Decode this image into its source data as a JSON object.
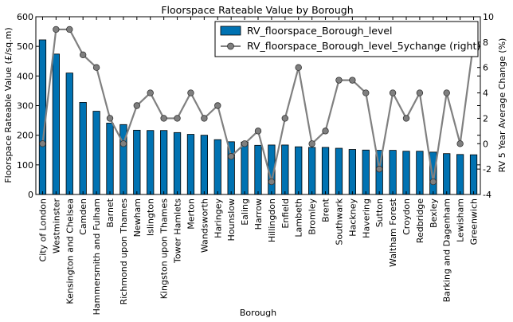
{
  "chart_data": {
    "type": "bar",
    "title": "Floorspace Rateable Value by Borough",
    "xlabel": "Borough",
    "ylabel": "Floorspace Rateable Value (£/sq.m)",
    "ylabel_right": "RV 5 Year Average Change (%)",
    "ylim": [
      0,
      600
    ],
    "ylim_right": [
      -4,
      10
    ],
    "yticks": [
      0,
      100,
      200,
      300,
      400,
      500,
      600
    ],
    "yticks_right": [
      -4,
      -2,
      0,
      2,
      4,
      6,
      8,
      10
    ],
    "legend_position": "top-right",
    "categories": [
      "City of London",
      "Westminster",
      "Kensington and Chelsea",
      "Camden",
      "Hammersmith and Fulham",
      "Barnet",
      "Richmond upon Thames",
      "Newham",
      "Islington",
      "Kingston upon Thames",
      "Tower Hamlets",
      "Merton",
      "Wandsworth",
      "Haringey",
      "Hounslow",
      "Ealing",
      "Harrow",
      "Hillingdon",
      "Enfield",
      "Lambeth",
      "Bromley",
      "Brent",
      "Southwark",
      "Hackney",
      "Havering",
      "Sutton",
      "Waltham Forest",
      "Croydon",
      "Redbridge",
      "Bexley",
      "Barking and Dagenham",
      "Lewisham",
      "Greenwich"
    ],
    "series": [
      {
        "name": "RV_floorspace_Borough_level",
        "kind": "bar",
        "axis": "left",
        "color": "#0072b2",
        "values": [
          522,
          474,
          410,
          311,
          281,
          241,
          236,
          217,
          216,
          216,
          209,
          203,
          200,
          185,
          178,
          177,
          166,
          167,
          167,
          161,
          159,
          159,
          156,
          152,
          150,
          149,
          149,
          146,
          146,
          143,
          138,
          135,
          134
        ]
      },
      {
        "name": "RV_floorspace_Borough_level_5ychange (right)",
        "kind": "line",
        "axis": "right",
        "color": "#808080",
        "marker_color": "#7f7f7f",
        "values": [
          0,
          9,
          9,
          7,
          6,
          2,
          0,
          3,
          4,
          2,
          2,
          4,
          2,
          3,
          -1,
          0,
          1,
          -3,
          2,
          6,
          0,
          1,
          5,
          5,
          4,
          -2,
          4,
          2,
          4,
          -3,
          4,
          0,
          8
        ]
      }
    ]
  }
}
